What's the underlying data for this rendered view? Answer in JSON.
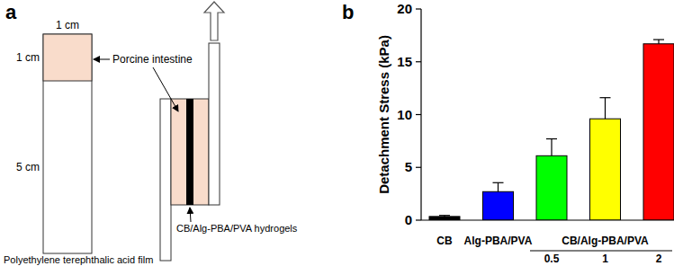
{
  "diagram": {
    "panel_label": "a",
    "top_width": "1 cm",
    "sample_height": "1 cm",
    "film_length": "5 cm",
    "film_label": "Polyethylene terephthalic acid film",
    "tissue_label": "Porcine intestine",
    "hydrogel_label": "CB/Alg-PBA/PVA hydrogels"
  },
  "chart_data": {
    "type": "bar",
    "panel_label": "b",
    "y_label": "Detachment Stress (kPa)",
    "categories": [
      "CB",
      "Alg-PBA/PVA",
      "0.5",
      "1",
      "2"
    ],
    "category_groups": [
      {
        "label": "CB/Alg-PBA/PVA",
        "categories": [
          "0.5",
          "1",
          "2"
        ]
      }
    ],
    "values": [
      0.35,
      2.7,
      6.1,
      9.6,
      16.7
    ],
    "errors": [
      0.1,
      0.85,
      1.6,
      2.0,
      0.4
    ],
    "colors": [
      "#000000",
      "#0000ff",
      "#00ff00",
      "#ffff00",
      "#ff0000"
    ],
    "ylim": [
      0,
      20
    ],
    "yticks": [
      0,
      5,
      10,
      15,
      20
    ],
    "grid": false
  }
}
